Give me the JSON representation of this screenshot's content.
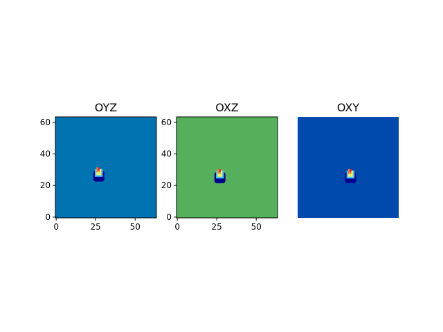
{
  "chart_data": [
    {
      "type": "heatmap",
      "title": "OYZ",
      "background_color": "#0173b0",
      "x_ticks": [
        0,
        25,
        50
      ],
      "y_ticks": [
        0,
        20,
        40,
        60
      ],
      "xlim": [
        -0.5,
        63.5
      ],
      "ylim": [
        63.5,
        -0.5
      ],
      "axis_visible": true,
      "hotspot": {
        "x": 27,
        "y": 33
      }
    },
    {
      "type": "heatmap",
      "title": "OXZ",
      "background_color": "#54b05a",
      "x_ticks": [
        0,
        25,
        50
      ],
      "y_ticks": [
        0,
        20,
        40,
        60
      ],
      "xlim": [
        -0.5,
        63.5
      ],
      "ylim": [
        63.5,
        -0.5
      ],
      "axis_visible": true,
      "hotspot": {
        "x": 27,
        "y": 32
      }
    },
    {
      "type": "heatmap",
      "title": "OXY",
      "background_color": "#004aad",
      "x_ticks": [],
      "y_ticks": [],
      "xlim": [
        -0.5,
        63.5
      ],
      "ylim": [
        63.5,
        -0.5
      ],
      "axis_visible": false,
      "hotspot": {
        "x": 33,
        "y": 32
      }
    }
  ],
  "hotspot_colors": {
    "ring": "#00008f",
    "mid": "#3cc8ff",
    "warm": "#f0f05a",
    "hot": "#ff7a2a",
    "core": "#e0202a"
  }
}
